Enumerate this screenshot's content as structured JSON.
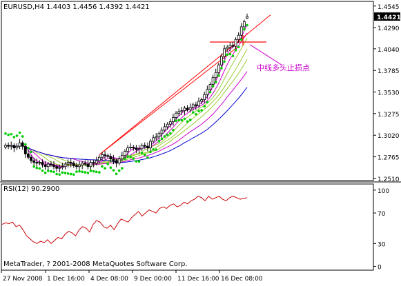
{
  "main_chart": {
    "header": "EURUSD,H4  1.4403 1.4456 1.4392 1.4421",
    "annotation": "中线多头止损点",
    "price_ticks": [
      "1.4545",
      "1.4290",
      "1.4040",
      "1.3785",
      "1.3530",
      "1.3275",
      "1.3020",
      "1.2765",
      "1.2510"
    ],
    "current_price": "1.4421"
  },
  "rsi_panel": {
    "header": "RSI(12) 90.2900",
    "ticks": [
      "100",
      "70",
      "30",
      "0"
    ],
    "copyright": "MetaTrader, ? 2001-2008 MetaQuotes Software Corp."
  },
  "time_axis": {
    "labels": [
      "27 Nov 2008",
      "1 Dec 16:00",
      "4 Dec 08:00",
      "9 Dec 00:00",
      "11 Dec 16:00",
      "16 Dec 08:00"
    ]
  },
  "colors": {
    "candle": "#000000",
    "trendline": "#ff0000",
    "sar": "#00cc00",
    "annotation": "#cc00cc",
    "ma_blue": "#0000cc",
    "ma_magenta": "#cc00cc",
    "ma_green": "#99cc33",
    "rsi": "#cc0000"
  },
  "chart_data": [
    {
      "type": "candlestick",
      "symbol": "EURUSD",
      "timeframe": "H4",
      "last_bar": {
        "open": 1.4403,
        "high": 1.4456,
        "low": 1.4392,
        "close": 1.4421
      },
      "ylim": [
        1.251,
        1.4545
      ],
      "closes": [
        1.29,
        1.289,
        1.29,
        1.287,
        1.289,
        1.293,
        1.289,
        1.28,
        1.276,
        1.272,
        1.27,
        1.269,
        1.27,
        1.267,
        1.265,
        1.268,
        1.267,
        1.265,
        1.263,
        1.264,
        1.265,
        1.268,
        1.27,
        1.269,
        1.266,
        1.265,
        1.267,
        1.269,
        1.268,
        1.265,
        1.27,
        1.269,
        1.272,
        1.276,
        1.279,
        1.278,
        1.277,
        1.274,
        1.272,
        1.269,
        1.274,
        1.278,
        1.283,
        1.287,
        1.288,
        1.287,
        1.285,
        1.286,
        1.29,
        1.289,
        1.287,
        1.295,
        1.299,
        1.3,
        1.304,
        1.308,
        1.312,
        1.315,
        1.318,
        1.323,
        1.328,
        1.33,
        1.331,
        1.334,
        1.332,
        1.335,
        1.338,
        1.337,
        1.342,
        1.344,
        1.35,
        1.356,
        1.362,
        1.37,
        1.376,
        1.385,
        1.395,
        1.404,
        1.406,
        1.408,
        1.407,
        1.415,
        1.42,
        1.43,
        1.436,
        1.4421
      ]
    },
    {
      "type": "line",
      "name": "RSI(12)",
      "last_value": 90.29,
      "ylim": [
        0,
        100
      ],
      "values": [
        55,
        57,
        56,
        58,
        52,
        54,
        48,
        40,
        36,
        32,
        30,
        33,
        31,
        35,
        30,
        34,
        38,
        36,
        42,
        46,
        44,
        40,
        48,
        52,
        50,
        45,
        55,
        60,
        58,
        52,
        50,
        54,
        48,
        56,
        62,
        60,
        58,
        64,
        68,
        72,
        66,
        70,
        74,
        72,
        70,
        76,
        78,
        76,
        80,
        82,
        78,
        80,
        84,
        82,
        86,
        88,
        92,
        90,
        86,
        92,
        88,
        90,
        92,
        88,
        86,
        90,
        92,
        90,
        88,
        89,
        90
      ]
    }
  ]
}
